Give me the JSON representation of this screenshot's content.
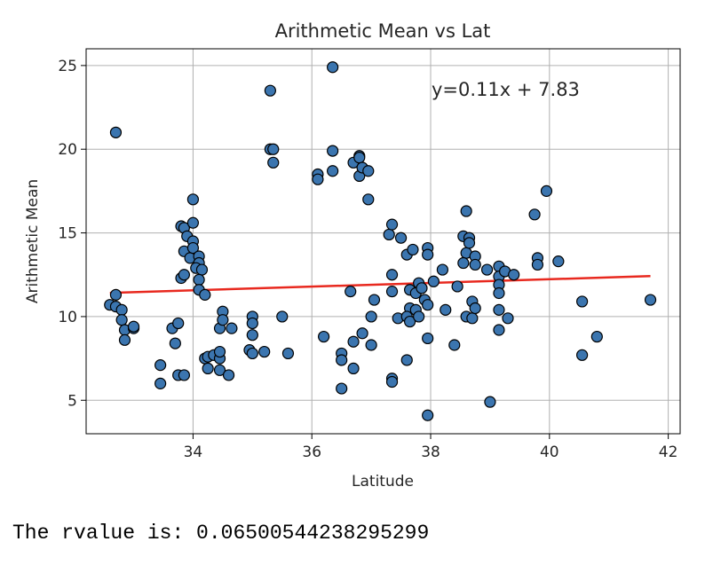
{
  "chart_data": {
    "type": "scatter",
    "title": "Arithmetic Mean vs Lat",
    "xlabel": "Latitude",
    "ylabel": "Arithmetic Mean",
    "xlim": [
      32.2,
      42.2
    ],
    "ylim": [
      3,
      26
    ],
    "xticks": [
      34,
      36,
      38,
      40,
      42
    ],
    "yticks": [
      5,
      10,
      15,
      20,
      25
    ],
    "grid": true,
    "marker_fill": "#3b75af",
    "marker_edge": "#000000",
    "regression": {
      "label": "y=0.11x + 7.83",
      "slope": 0.11,
      "intercept": 7.83,
      "x_range": [
        32.6,
        41.7
      ],
      "color": "#e8291f"
    },
    "points": [
      [
        32.7,
        21.0
      ],
      [
        32.6,
        10.7
      ],
      [
        32.7,
        11.3
      ],
      [
        32.7,
        10.6
      ],
      [
        32.8,
        10.4
      ],
      [
        32.8,
        9.8
      ],
      [
        32.85,
        9.2
      ],
      [
        32.85,
        8.6
      ],
      [
        33.0,
        9.3
      ],
      [
        33.0,
        9.4
      ],
      [
        33.45,
        7.1
      ],
      [
        33.45,
        6.0
      ],
      [
        33.65,
        9.3
      ],
      [
        33.7,
        8.4
      ],
      [
        33.75,
        9.6
      ],
      [
        33.75,
        6.5
      ],
      [
        33.85,
        6.5
      ],
      [
        33.8,
        15.4
      ],
      [
        33.85,
        15.3
      ],
      [
        33.9,
        14.8
      ],
      [
        33.85,
        13.9
      ],
      [
        33.95,
        13.5
      ],
      [
        33.8,
        12.3
      ],
      [
        33.85,
        12.5
      ],
      [
        34.0,
        17.0
      ],
      [
        34.0,
        15.6
      ],
      [
        34.0,
        14.5
      ],
      [
        34.0,
        14.1
      ],
      [
        34.1,
        13.6
      ],
      [
        34.1,
        13.2
      ],
      [
        34.05,
        12.9
      ],
      [
        34.15,
        12.8
      ],
      [
        34.1,
        12.2
      ],
      [
        34.1,
        11.6
      ],
      [
        34.2,
        11.3
      ],
      [
        34.2,
        7.5
      ],
      [
        34.25,
        7.6
      ],
      [
        34.25,
        6.9
      ],
      [
        34.35,
        7.7
      ],
      [
        34.45,
        7.5
      ],
      [
        34.45,
        7.9
      ],
      [
        34.45,
        9.3
      ],
      [
        34.5,
        10.3
      ],
      [
        34.5,
        9.8
      ],
      [
        34.45,
        6.8
      ],
      [
        34.6,
        6.5
      ],
      [
        34.65,
        9.3
      ],
      [
        34.95,
        8.0
      ],
      [
        35.0,
        10.0
      ],
      [
        35.0,
        9.6
      ],
      [
        35.0,
        8.9
      ],
      [
        35.0,
        7.8
      ],
      [
        35.2,
        7.9
      ],
      [
        35.3,
        23.5
      ],
      [
        35.3,
        20.0
      ],
      [
        35.35,
        20.0
      ],
      [
        35.35,
        19.2
      ],
      [
        35.5,
        10.0
      ],
      [
        35.6,
        7.8
      ],
      [
        36.1,
        18.5
      ],
      [
        36.1,
        18.2
      ],
      [
        36.2,
        8.8
      ],
      [
        36.35,
        24.9
      ],
      [
        36.35,
        19.9
      ],
      [
        36.35,
        18.7
      ],
      [
        36.5,
        7.8
      ],
      [
        36.5,
        7.4
      ],
      [
        36.5,
        5.7
      ],
      [
        36.65,
        11.5
      ],
      [
        36.7,
        8.5
      ],
      [
        36.7,
        6.9
      ],
      [
        36.7,
        19.2
      ],
      [
        36.8,
        19.6
      ],
      [
        36.8,
        19.5
      ],
      [
        36.8,
        18.4
      ],
      [
        36.85,
        18.9
      ],
      [
        36.85,
        9.0
      ],
      [
        36.95,
        18.7
      ],
      [
        36.95,
        17.0
      ],
      [
        37.0,
        10.0
      ],
      [
        37.0,
        8.3
      ],
      [
        37.05,
        11.0
      ],
      [
        37.3,
        14.9
      ],
      [
        37.35,
        15.5
      ],
      [
        37.35,
        12.5
      ],
      [
        37.35,
        11.5
      ],
      [
        37.35,
        6.3
      ],
      [
        37.35,
        6.1
      ],
      [
        37.5,
        14.7
      ],
      [
        37.45,
        9.9
      ],
      [
        37.6,
        13.7
      ],
      [
        37.6,
        7.4
      ],
      [
        37.65,
        11.6
      ],
      [
        37.65,
        10.5
      ],
      [
        37.6,
        10.0
      ],
      [
        37.65,
        9.7
      ],
      [
        37.7,
        14.0
      ],
      [
        37.75,
        11.4
      ],
      [
        37.75,
        10.4
      ],
      [
        37.8,
        12.0
      ],
      [
        37.8,
        10.0
      ],
      [
        37.85,
        11.7
      ],
      [
        37.9,
        11.0
      ],
      [
        37.95,
        14.1
      ],
      [
        37.95,
        13.7
      ],
      [
        37.95,
        10.7
      ],
      [
        37.95,
        8.7
      ],
      [
        37.95,
        4.1
      ],
      [
        38.05,
        12.1
      ],
      [
        38.2,
        12.8
      ],
      [
        38.25,
        10.4
      ],
      [
        38.4,
        8.3
      ],
      [
        38.45,
        11.8
      ],
      [
        38.55,
        14.8
      ],
      [
        38.6,
        16.3
      ],
      [
        38.6,
        13.8
      ],
      [
        38.55,
        13.2
      ],
      [
        38.6,
        10.0
      ],
      [
        38.65,
        14.7
      ],
      [
        38.65,
        14.4
      ],
      [
        38.7,
        10.9
      ],
      [
        38.7,
        9.9
      ],
      [
        38.75,
        13.6
      ],
      [
        38.75,
        13.1
      ],
      [
        38.75,
        10.5
      ],
      [
        38.95,
        12.8
      ],
      [
        39.0,
        4.9
      ],
      [
        39.15,
        13.0
      ],
      [
        39.15,
        12.4
      ],
      [
        39.15,
        11.9
      ],
      [
        39.15,
        11.4
      ],
      [
        39.15,
        10.4
      ],
      [
        39.15,
        9.2
      ],
      [
        39.25,
        12.7
      ],
      [
        39.3,
        9.9
      ],
      [
        39.4,
        12.5
      ],
      [
        39.75,
        16.1
      ],
      [
        39.8,
        13.5
      ],
      [
        39.8,
        13.1
      ],
      [
        39.95,
        17.5
      ],
      [
        40.15,
        13.3
      ],
      [
        40.55,
        10.9
      ],
      [
        40.55,
        7.7
      ],
      [
        40.8,
        8.8
      ],
      [
        41.7,
        11.0
      ]
    ]
  },
  "output": {
    "text": "The rvalue is: 0.06500544238295299"
  }
}
